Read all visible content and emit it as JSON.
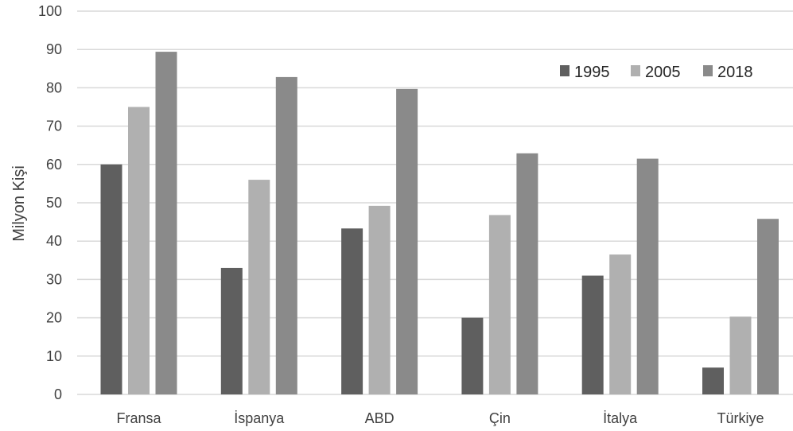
{
  "chart_data": {
    "type": "bar",
    "title": "",
    "xlabel": "",
    "ylabel": "Milyon Kişi",
    "ylim": [
      0,
      100
    ],
    "yticks": [
      0,
      10,
      20,
      30,
      40,
      50,
      60,
      70,
      80,
      90,
      100
    ],
    "categories": [
      "Fransa",
      "İspanya",
      "ABD",
      "Çin",
      "İtalya",
      "Türkiye"
    ],
    "series": [
      {
        "name": "1995",
        "color": "#5f5f5f",
        "values": [
          60,
          33,
          43.3,
          20.0,
          31.0,
          7.0
        ]
      },
      {
        "name": "2005",
        "color": "#b0b0b0",
        "values": [
          75,
          56,
          49.2,
          46.8,
          36.5,
          20.3
        ]
      },
      {
        "name": "2018",
        "color": "#8a8a8a",
        "values": [
          89.4,
          82.8,
          79.7,
          62.9,
          61.5,
          45.8
        ]
      }
    ],
    "grid": true,
    "legend_position": "top-right"
  }
}
